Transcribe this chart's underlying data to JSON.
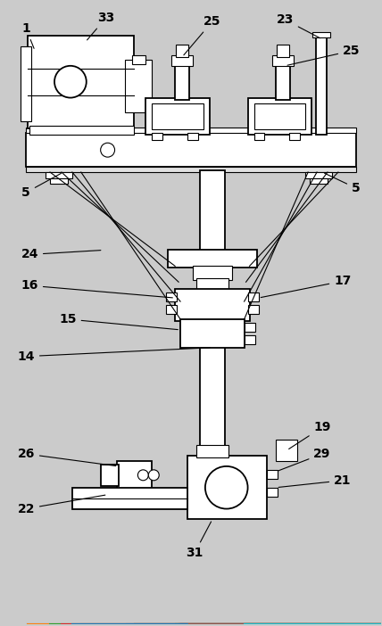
{
  "bg_color": "#cbcbcb",
  "lw": 1.3,
  "lw_thin": 0.8,
  "fig_w": 4.28,
  "fig_h": 7.02,
  "dpi": 100
}
